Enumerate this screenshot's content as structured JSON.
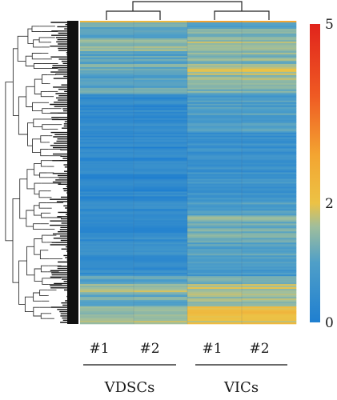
{
  "chart_data": {
    "type": "heatmap",
    "title": "",
    "xlabel": "",
    "ylabel": "",
    "columns": [
      "#1",
      "#2",
      "#1",
      "#2"
    ],
    "groups": [
      {
        "label": "VDSCs",
        "columns": [
          0,
          1
        ]
      },
      {
        "label": "VICs",
        "columns": [
          2,
          3
        ]
      }
    ],
    "color_scale": {
      "min": 0,
      "max": 5,
      "ticks": [
        "0",
        "2",
        "5"
      ],
      "stops": [
        {
          "value": 0,
          "color": "#1f7fd0"
        },
        {
          "value": 1,
          "color": "#4f9fc8"
        },
        {
          "value": 1.6,
          "color": "#9fbe9c"
        },
        {
          "value": 2,
          "color": "#ecc245"
        },
        {
          "value": 2.8,
          "color": "#f3a531"
        },
        {
          "value": 3.8,
          "color": "#ef5a23"
        },
        {
          "value": 5,
          "color": "#e1241c"
        }
      ]
    },
    "row_profile": [
      {
        "end": 0.005,
        "left": 2.6,
        "right": 2.6
      },
      {
        "end": 0.02,
        "left": 1.2,
        "right": 1.0
      },
      {
        "end": 0.06,
        "left": 0.9,
        "right": 1.3
      },
      {
        "end": 0.1,
        "left": 1.4,
        "right": 1.6
      },
      {
        "end": 0.14,
        "left": 1.0,
        "right": 1.4
      },
      {
        "end": 0.18,
        "left": 1.3,
        "right": 1.7
      },
      {
        "end": 0.22,
        "left": 0.9,
        "right": 1.5
      },
      {
        "end": 0.24,
        "left": 1.2,
        "right": 1.3
      },
      {
        "end": 0.37,
        "left": 0.35,
        "right": 0.9
      },
      {
        "end": 0.4,
        "left": 0.3,
        "right": 0.5
      },
      {
        "end": 0.5,
        "left": 0.3,
        "right": 0.6
      },
      {
        "end": 0.6,
        "left": 0.3,
        "right": 0.7
      },
      {
        "end": 0.64,
        "left": 0.4,
        "right": 0.9
      },
      {
        "end": 0.66,
        "left": 0.35,
        "right": 1.5
      },
      {
        "end": 0.73,
        "left": 0.4,
        "right": 1.3
      },
      {
        "end": 0.8,
        "left": 0.5,
        "right": 1.0
      },
      {
        "end": 0.84,
        "left": 0.5,
        "right": 0.8
      },
      {
        "end": 0.87,
        "left": 1.0,
        "right": 1.3
      },
      {
        "end": 0.9,
        "left": 1.6,
        "right": 1.7
      },
      {
        "end": 0.94,
        "left": 1.2,
        "right": 1.6
      },
      {
        "end": 1.0,
        "left": 1.5,
        "right": 2.0
      }
    ]
  }
}
